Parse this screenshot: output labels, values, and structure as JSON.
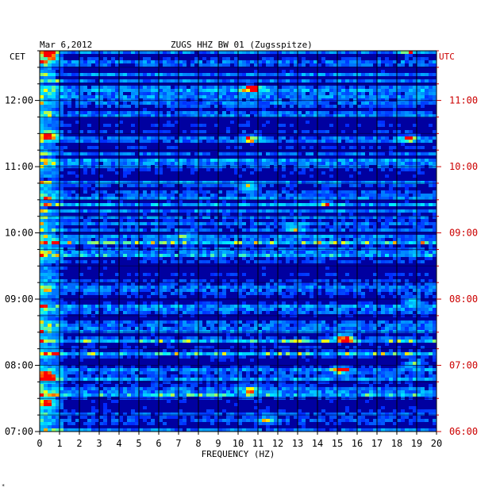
{
  "chart_data": {
    "type": "heatmap",
    "date": "Mar 6,2012",
    "title": "ZUGS HHZ BW 01 (Zugsspitze)",
    "left_tz": "CET",
    "right_tz": "UTC",
    "xlabel": "FREQUENCY (HZ)",
    "xlim": [
      0,
      20
    ],
    "x_ticks": [
      "0",
      "1",
      "2",
      "3",
      "4",
      "5",
      "6",
      "7",
      "8",
      "9",
      "10",
      "11",
      "12",
      "13",
      "14",
      "15",
      "16",
      "17",
      "18",
      "19",
      "20"
    ],
    "left_ticks": [
      {
        "label": "12:00",
        "hour": 12
      },
      {
        "label": "11:00",
        "hour": 11
      },
      {
        "label": "10:00",
        "hour": 10
      },
      {
        "label": "09:00",
        "hour": 9
      },
      {
        "label": "08:00",
        "hour": 8
      },
      {
        "label": "07:00",
        "hour": 7
      }
    ],
    "right_ticks": [
      {
        "label": "11:00",
        "hour": 12
      },
      {
        "label": "10:00",
        "hour": 11
      },
      {
        "label": "09:00",
        "hour": 10
      },
      {
        "label": "08:00",
        "hour": 9
      },
      {
        "label": "07:00",
        "hour": 8
      },
      {
        "label": "06:00",
        "hour": 7
      }
    ],
    "ylim_cet_hours": [
      7,
      12.75
    ],
    "grid": true,
    "colors": {
      "background": "#0000a0",
      "low": "#0000ff",
      "mid": "#00c8ff",
      "high": "#ffff00",
      "peak": "#ff0000",
      "utc_label": "#cc0000"
    },
    "hot_spots": [
      {
        "f": 0.4,
        "t": 12.7,
        "level": 1.0
      },
      {
        "f": 0.4,
        "t": 11.5,
        "level": 0.8
      },
      {
        "f": 0.3,
        "t": 7.85,
        "level": 0.9
      },
      {
        "f": 0.3,
        "t": 7.45,
        "level": 0.8
      },
      {
        "f": 10.6,
        "t": 12.2,
        "level": 0.9
      },
      {
        "f": 10.5,
        "t": 11.45,
        "level": 0.8
      },
      {
        "f": 10.4,
        "t": 10.7,
        "level": 0.7
      },
      {
        "f": 15.2,
        "t": 8.45,
        "level": 0.9
      },
      {
        "f": 15.1,
        "t": 7.95,
        "level": 0.8
      },
      {
        "f": 18.5,
        "t": 11.45,
        "level": 0.8
      },
      {
        "f": 18.8,
        "t": 8.05,
        "level": 0.7
      },
      {
        "f": 18.7,
        "t": 9.0,
        "level": 0.6
      },
      {
        "f": 18.4,
        "t": 12.75,
        "level": 0.6
      },
      {
        "f": 7.3,
        "t": 10.0,
        "level": 0.5
      },
      {
        "f": 12.8,
        "t": 10.1,
        "level": 0.5
      },
      {
        "f": 10.5,
        "t": 7.65,
        "level": 0.6
      },
      {
        "f": 14.3,
        "t": 10.45,
        "level": 0.5
      },
      {
        "f": 11.3,
        "t": 7.2,
        "level": 0.5
      }
    ]
  }
}
